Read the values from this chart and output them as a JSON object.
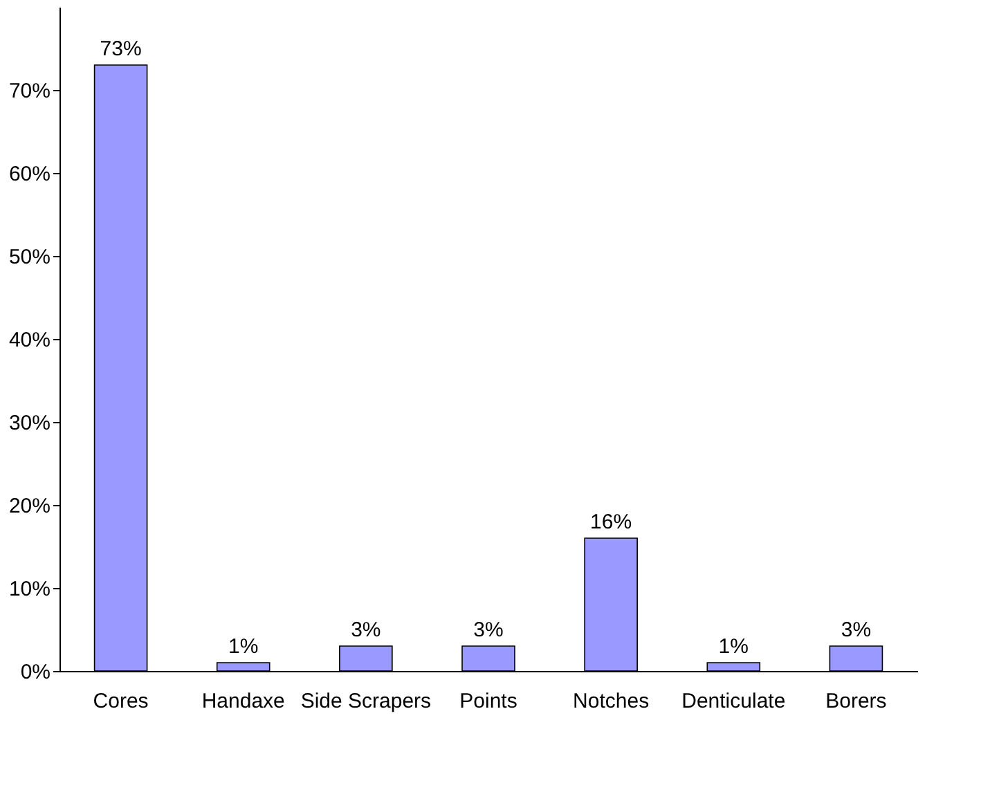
{
  "chart_data": {
    "type": "bar",
    "categories": [
      "Cores",
      "Handaxe",
      "Side Scrapers",
      "Points",
      "Notches",
      "Denticulate",
      "Borers"
    ],
    "values": [
      73,
      1,
      3,
      3,
      16,
      1,
      3
    ],
    "value_labels": [
      "73%",
      "1%",
      "3%",
      "3%",
      "16%",
      "1%",
      "3%"
    ],
    "color": "#9999ff",
    "ylim": [
      0,
      80
    ],
    "yticks": [
      {
        "value": 0,
        "label": "0%"
      },
      {
        "value": 10,
        "label": "10%"
      },
      {
        "value": 20,
        "label": "20%"
      },
      {
        "value": 30,
        "label": "30%"
      },
      {
        "value": 40,
        "label": "40%"
      },
      {
        "value": 50,
        "label": "50%"
      },
      {
        "value": 60,
        "label": "60%"
      },
      {
        "value": 70,
        "label": "70%"
      }
    ],
    "grid": false
  }
}
